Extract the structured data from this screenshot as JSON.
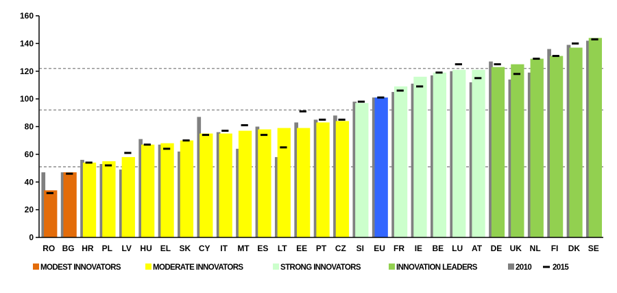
{
  "chart_data": {
    "type": "bar",
    "title": "",
    "xlabel": "",
    "ylabel": "",
    "ylim": [
      0,
      160
    ],
    "yticks": [
      0,
      20,
      40,
      60,
      80,
      100,
      120,
      140,
      160
    ],
    "reference_lines": [
      51,
      92,
      122
    ],
    "grid": false,
    "legend_position": "bottom",
    "categories": [
      "RO",
      "BG",
      "HR",
      "PL",
      "LV",
      "HU",
      "EL",
      "SK",
      "CY",
      "IT",
      "MT",
      "ES",
      "LT",
      "EE",
      "PT",
      "CZ",
      "SI",
      "EU",
      "FR",
      "IE",
      "BE",
      "LU",
      "AT",
      "DE",
      "UK",
      "NL",
      "FI",
      "DK",
      "SE"
    ],
    "groups": [
      "modest",
      "modest",
      "moderate",
      "moderate",
      "moderate",
      "moderate",
      "moderate",
      "moderate",
      "moderate",
      "moderate",
      "moderate",
      "moderate",
      "moderate",
      "moderate",
      "moderate",
      "moderate",
      "strong",
      "eu",
      "strong",
      "strong",
      "strong",
      "strong",
      "strong",
      "leader",
      "leader",
      "leader",
      "leader",
      "leader",
      "leader"
    ],
    "group_colors": {
      "modest": "#E36C0A",
      "moderate": "#FFFF00",
      "strong": "#CCFFCC",
      "eu": "#3366FF",
      "leader": "#92D050"
    },
    "values_2010_color": "#808080",
    "marker_2015_color": "#000000",
    "series": [
      {
        "name": "",
        "key": "current",
        "values": [
          34,
          47,
          54,
          55,
          58,
          67,
          68,
          70,
          75,
          75,
          77,
          78,
          79,
          79,
          83,
          84,
          97,
          101,
          109,
          116,
          119,
          121,
          121,
          123,
          125,
          129,
          131,
          137,
          144
        ]
      },
      {
        "name": "2010",
        "key": "y2010",
        "values": [
          47,
          47,
          56,
          53,
          49,
          71,
          67,
          62,
          87,
          76,
          64,
          80,
          58,
          83,
          85,
          88,
          98,
          101,
          105,
          111,
          117,
          120,
          112,
          127,
          114,
          119,
          136,
          139,
          142
        ]
      },
      {
        "name": "2015",
        "key": "y2015",
        "values": [
          32,
          46,
          54,
          52,
          61,
          67,
          64,
          70,
          74,
          77,
          81,
          74,
          65,
          91,
          85,
          85,
          98,
          101,
          106,
          109,
          119,
          125,
          115,
          125,
          118,
          129,
          131,
          140,
          143
        ]
      }
    ],
    "legend": [
      {
        "label": "MODEST INNOVATORS",
        "color": "#E36C0A"
      },
      {
        "label": "MODERATE INNOVATORS",
        "color": "#FFFF00"
      },
      {
        "label": "STRONG INNOVATORS",
        "color": "#CCFFCC"
      },
      {
        "label": "INNOVATION LEADERS",
        "color": "#92D050"
      },
      {
        "label": "2010",
        "color": "#808080"
      },
      {
        "label": "2015",
        "color": "#000000"
      }
    ]
  }
}
